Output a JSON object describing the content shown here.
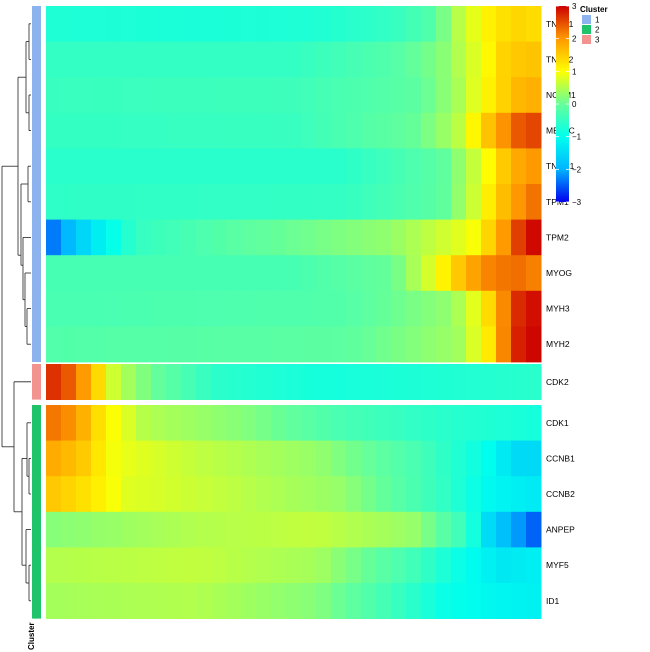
{
  "chart_data": {
    "type": "heatmap",
    "title": "",
    "xlabel": "",
    "ylabel": "",
    "genes": [
      "TNNT1",
      "TNNT2",
      "NCAM1",
      "MEF2C",
      "TNNC1",
      "TPM1",
      "TPM2",
      "MYOG",
      "MYH3",
      "MYH2",
      "CDK2",
      "CDK1",
      "CCNB1",
      "CCNB2",
      "ANPEP",
      "MYF5",
      "ID1"
    ],
    "gene_cluster": [
      1,
      1,
      1,
      1,
      1,
      1,
      1,
      1,
      1,
      1,
      3,
      2,
      2,
      2,
      2,
      2,
      2
    ],
    "cluster_label": "Cluster",
    "legend": {
      "color_title": "",
      "ticks": [
        3,
        2,
        1,
        0,
        -1,
        -2,
        -3
      ],
      "range": [
        -3,
        3
      ],
      "cluster_title": "Cluster",
      "clusters": [
        {
          "id": "1",
          "color": "#8DB3EE"
        },
        {
          "id": "2",
          "color": "#1EC36A"
        },
        {
          "id": "3",
          "color": "#F39390"
        }
      ]
    },
    "colorscale": [
      "#0000EE",
      "#00B4FF",
      "#00FFEE",
      "#66FF99",
      "#FFFF00",
      "#FF9900",
      "#CC0000"
    ],
    "n_columns": 33,
    "profiles": {
      "TNNT1": [
        [
          0,
          -0.7
        ],
        [
          0.3,
          -0.75
        ],
        [
          0.55,
          -0.7
        ],
        [
          0.7,
          -0.5
        ],
        [
          0.78,
          -0.2
        ],
        [
          0.83,
          0.5
        ],
        [
          0.9,
          1.2
        ],
        [
          0.95,
          1.4
        ],
        [
          1,
          1.3
        ]
      ],
      "TNNT2": [
        [
          0,
          -0.5
        ],
        [
          0.5,
          -0.5
        ],
        [
          0.7,
          -0.2
        ],
        [
          0.8,
          0.2
        ],
        [
          0.88,
          0.9
        ],
        [
          0.93,
          1.5
        ],
        [
          1,
          1.6
        ]
      ],
      "NCAM1": [
        [
          0,
          -0.45
        ],
        [
          0.5,
          -0.4
        ],
        [
          0.75,
          -0.1
        ],
        [
          0.83,
          0.4
        ],
        [
          0.9,
          1.2
        ],
        [
          0.95,
          1.7
        ],
        [
          1,
          1.8
        ]
      ],
      "MEF2C": [
        [
          0,
          -0.5
        ],
        [
          0.5,
          -0.45
        ],
        [
          0.75,
          0
        ],
        [
          0.83,
          0.5
        ],
        [
          0.9,
          1.7
        ],
        [
          0.95,
          2.4
        ],
        [
          1,
          2.6
        ]
      ],
      "TNNC1": [
        [
          0,
          -0.6
        ],
        [
          0.6,
          -0.6
        ],
        [
          0.8,
          -0.1
        ],
        [
          0.88,
          0.8
        ],
        [
          0.93,
          1.6
        ],
        [
          0.97,
          2.0
        ],
        [
          1,
          2.0
        ]
      ],
      "TPM1": [
        [
          0,
          -0.55
        ],
        [
          0.6,
          -0.5
        ],
        [
          0.8,
          -0.1
        ],
        [
          0.86,
          0.6
        ],
        [
          0.92,
          1.6
        ],
        [
          0.97,
          2.2
        ],
        [
          1,
          2.3
        ]
      ],
      "TPM2": [
        [
          0,
          -2.5
        ],
        [
          0.08,
          -1.5
        ],
        [
          0.18,
          -0.5
        ],
        [
          0.4,
          -0.1
        ],
        [
          0.7,
          0.3
        ],
        [
          0.86,
          0.9
        ],
        [
          0.9,
          1.5
        ],
        [
          0.94,
          2.3
        ],
        [
          0.97,
          2.9
        ],
        [
          1,
          3
        ]
      ],
      "MYOG": [
        [
          0,
          -0.3
        ],
        [
          0.5,
          -0.3
        ],
        [
          0.7,
          0
        ],
        [
          0.78,
          0.8
        ],
        [
          0.83,
          1.5
        ],
        [
          0.88,
          2.1
        ],
        [
          0.95,
          2.3
        ],
        [
          1,
          2.1
        ]
      ],
      "MYH3": [
        [
          0,
          -0.3
        ],
        [
          0.6,
          -0.2
        ],
        [
          0.82,
          0.3
        ],
        [
          0.88,
          1.0
        ],
        [
          0.92,
          2.0
        ],
        [
          0.95,
          2.7
        ],
        [
          1,
          3
        ]
      ],
      "MYH2": [
        [
          0,
          -0.2
        ],
        [
          0.6,
          -0.1
        ],
        [
          0.84,
          0.4
        ],
        [
          0.9,
          1.3
        ],
        [
          0.93,
          2.3
        ],
        [
          0.96,
          2.9
        ],
        [
          1,
          3
        ]
      ],
      "CDK2": [
        [
          0,
          2.8
        ],
        [
          0.06,
          2.3
        ],
        [
          0.1,
          1.5
        ],
        [
          0.14,
          0.6
        ],
        [
          0.22,
          0
        ],
        [
          0.35,
          -0.6
        ],
        [
          0.55,
          -0.8
        ],
        [
          0.8,
          -0.7
        ],
        [
          1,
          -0.6
        ]
      ],
      "CDK1": [
        [
          0,
          2.3
        ],
        [
          0.06,
          2.0
        ],
        [
          0.12,
          1.1
        ],
        [
          0.2,
          0.5
        ],
        [
          0.4,
          0.2
        ],
        [
          0.6,
          -0.3
        ],
        [
          0.8,
          -0.6
        ],
        [
          1,
          -0.8
        ]
      ],
      "CCNB1": [
        [
          0,
          1.9
        ],
        [
          0.08,
          1.5
        ],
        [
          0.14,
          0.9
        ],
        [
          0.3,
          0.6
        ],
        [
          0.55,
          0.3
        ],
        [
          0.75,
          -0.3
        ],
        [
          0.88,
          -0.9
        ],
        [
          0.95,
          -1.5
        ],
        [
          1,
          -1.5
        ]
      ],
      "CCNB2": [
        [
          0,
          1.6
        ],
        [
          0.1,
          1.2
        ],
        [
          0.16,
          0.8
        ],
        [
          0.35,
          0.6
        ],
        [
          0.6,
          0.3
        ],
        [
          0.8,
          -0.5
        ],
        [
          0.9,
          -1.1
        ],
        [
          1,
          -1.3
        ]
      ],
      "ANPEP": [
        [
          0,
          0.2
        ],
        [
          0.3,
          0.5
        ],
        [
          0.55,
          0.6
        ],
        [
          0.75,
          0.3
        ],
        [
          0.85,
          -0.5
        ],
        [
          0.9,
          -1.6
        ],
        [
          0.95,
          -2.1
        ],
        [
          1,
          -2.6
        ]
      ],
      "MYF5": [
        [
          0,
          0.5
        ],
        [
          0.3,
          0.6
        ],
        [
          0.55,
          0.4
        ],
        [
          0.75,
          -0.4
        ],
        [
          0.85,
          -1.0
        ],
        [
          0.92,
          -1.3
        ],
        [
          1,
          -1.2
        ]
      ],
      "ID1": [
        [
          0,
          0.4
        ],
        [
          0.3,
          0.5
        ],
        [
          0.55,
          0.2
        ],
        [
          0.7,
          -0.4
        ],
        [
          0.8,
          -0.9
        ],
        [
          0.9,
          -1.1
        ],
        [
          1,
          -1.2
        ]
      ]
    }
  }
}
